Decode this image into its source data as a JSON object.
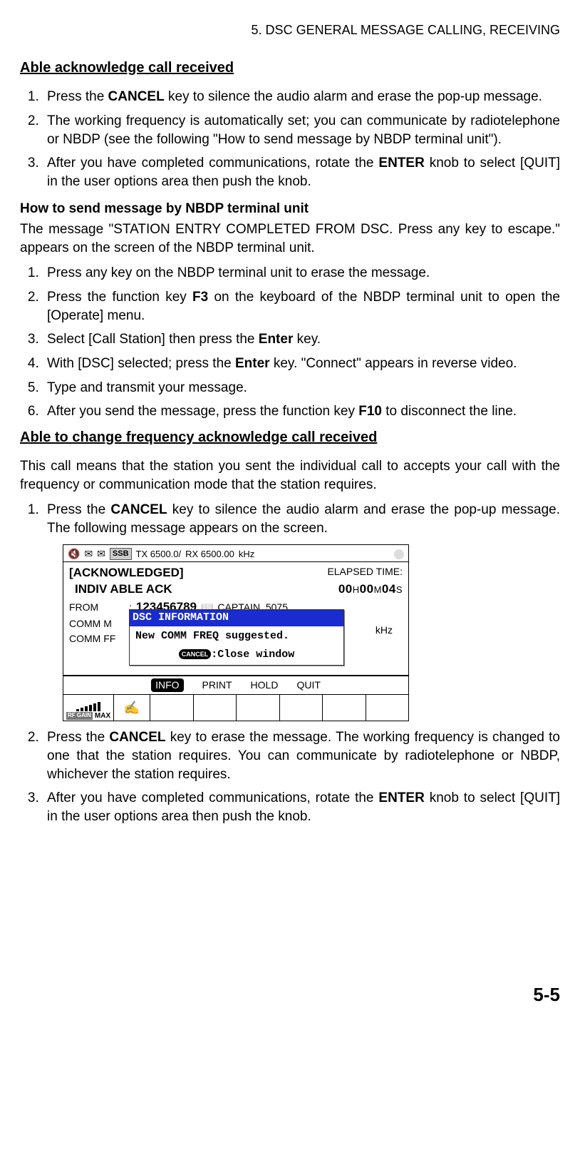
{
  "chapter": "5.  DSC GENERAL MESSAGE CALLING, RECEIVING",
  "sectionA": {
    "heading": "Able acknowledge call received",
    "steps": [
      "Press the <b>CANCEL</b> key to silence the audio alarm and erase the pop-up message.",
      "The working frequency is automatically set; you can communicate by radiotelephone or NBDP (see the following \"How to send message by NBDP terminal unit\").",
      "After you have completed communications, rotate the <b>ENTER</b> knob to select [QUIT] in the user options area then push the knob."
    ]
  },
  "nbdp": {
    "heading": "How to send message by NBDP terminal unit",
    "intro": "The message \"STATION ENTRY COMPLETED FROM DSC. Press any key to escape.\" appears on the screen of the NBDP terminal unit.",
    "steps": [
      "Press any key on the NBDP terminal unit to erase the message.",
      "Press the function key <b>F3</b> on the keyboard of the NBDP terminal unit to open the [Operate] menu.",
      "Select [Call Station] then press the <b>Enter</b> key.",
      "With [DSC] selected; press the <b>Enter</b> key. \"Connect\" appears in reverse video.",
      "Type and transmit your message.",
      "After you send the message, press the function key <b>F10</b> to disconnect the line."
    ]
  },
  "sectionB": {
    "heading": "Able to change frequency acknowledge call received",
    "intro": "This call means that the station you sent the individual call to accepts your call with the frequency or communication mode that the station requires.",
    "step1": "Press the <b>CANCEL</b> key to silence the audio alarm and erase the pop-up message. The following message appears on the screen.",
    "step2": "Press the <b>CANCEL</b> key to erase the message. The working frequency is changed to one that the station requires. You can communicate by radiotelephone or NBDP, whichever the station requires.",
    "step3": "After you have completed communications, rotate the <b>ENTER</b> knob to select [QUIT] in the user options area then push the knob."
  },
  "figure": {
    "ssb": "SSB",
    "tx": "TX   6500.0/",
    "rx": "RX   6500.00",
    "khz_top": "kHz",
    "ack": "[ACKNOWLEDGED]",
    "elapsed_lbl": "ELAPSED TIME:",
    "indiv": "INDIV  ABLE  ACK",
    "time_h": "00",
    "time_m": "00",
    "time_s": "04",
    "from_lbl": "FROM",
    "from_id": "123456789",
    "captain": "CAPTAIN_5075",
    "comm_m": "COMM M",
    "comm_f": "COMM FF",
    "popup_title": "DSC INFORMATION",
    "popup_body": "New COMM FREQ suggested.",
    "popup_cancel": "CANCEL",
    "popup_close": ":Close window",
    "khz_side": "kHz",
    "opt_info": "INFO",
    "opt_print": "PRINT",
    "opt_hold": "HOLD",
    "opt_quit": "QUIT",
    "rfgain": "RF GAIN",
    "max": "MAX"
  },
  "page_number": "5-5"
}
